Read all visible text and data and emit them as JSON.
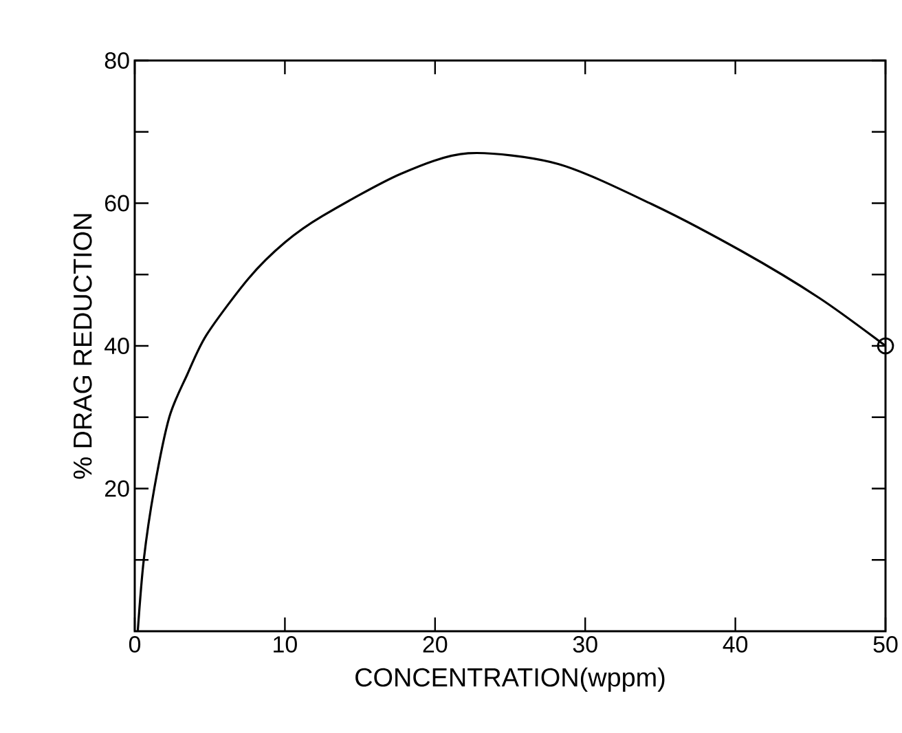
{
  "chart_data": {
    "type": "line",
    "xlabel": "CONCENTRATION(wppm)",
    "ylabel": "% DRAG REDUCTION",
    "xlim": [
      0,
      50
    ],
    "ylim": [
      0,
      80
    ],
    "xticks": [
      0,
      10,
      20,
      30,
      40,
      50
    ],
    "yticks": [
      {
        "value": 10,
        "label": null
      },
      20,
      {
        "value": 30,
        "label": null
      },
      40,
      {
        "value": 50,
        "label": null
      },
      60,
      {
        "value": 70,
        "label": null
      },
      80
    ],
    "series": [
      {
        "color": "#000000",
        "marker": "none",
        "x": [
          0.2,
          0.6,
          1.3,
          2.3,
          3.5,
          4.8,
          7.6,
          10,
          12.5,
          17.7,
          22.2,
          28.2,
          34.4,
          40.4,
          45.6,
          50
        ],
        "values": [
          0,
          10,
          20,
          30,
          36,
          41.6,
          49.5,
          54.5,
          58.2,
          64.1,
          67,
          65.5,
          59.9,
          53.3,
          46.7,
          40
        ]
      },
      {
        "type": "scatter",
        "color": "#000000",
        "marker": "circle",
        "x": [
          50
        ],
        "values": [
          40
        ]
      }
    ]
  }
}
